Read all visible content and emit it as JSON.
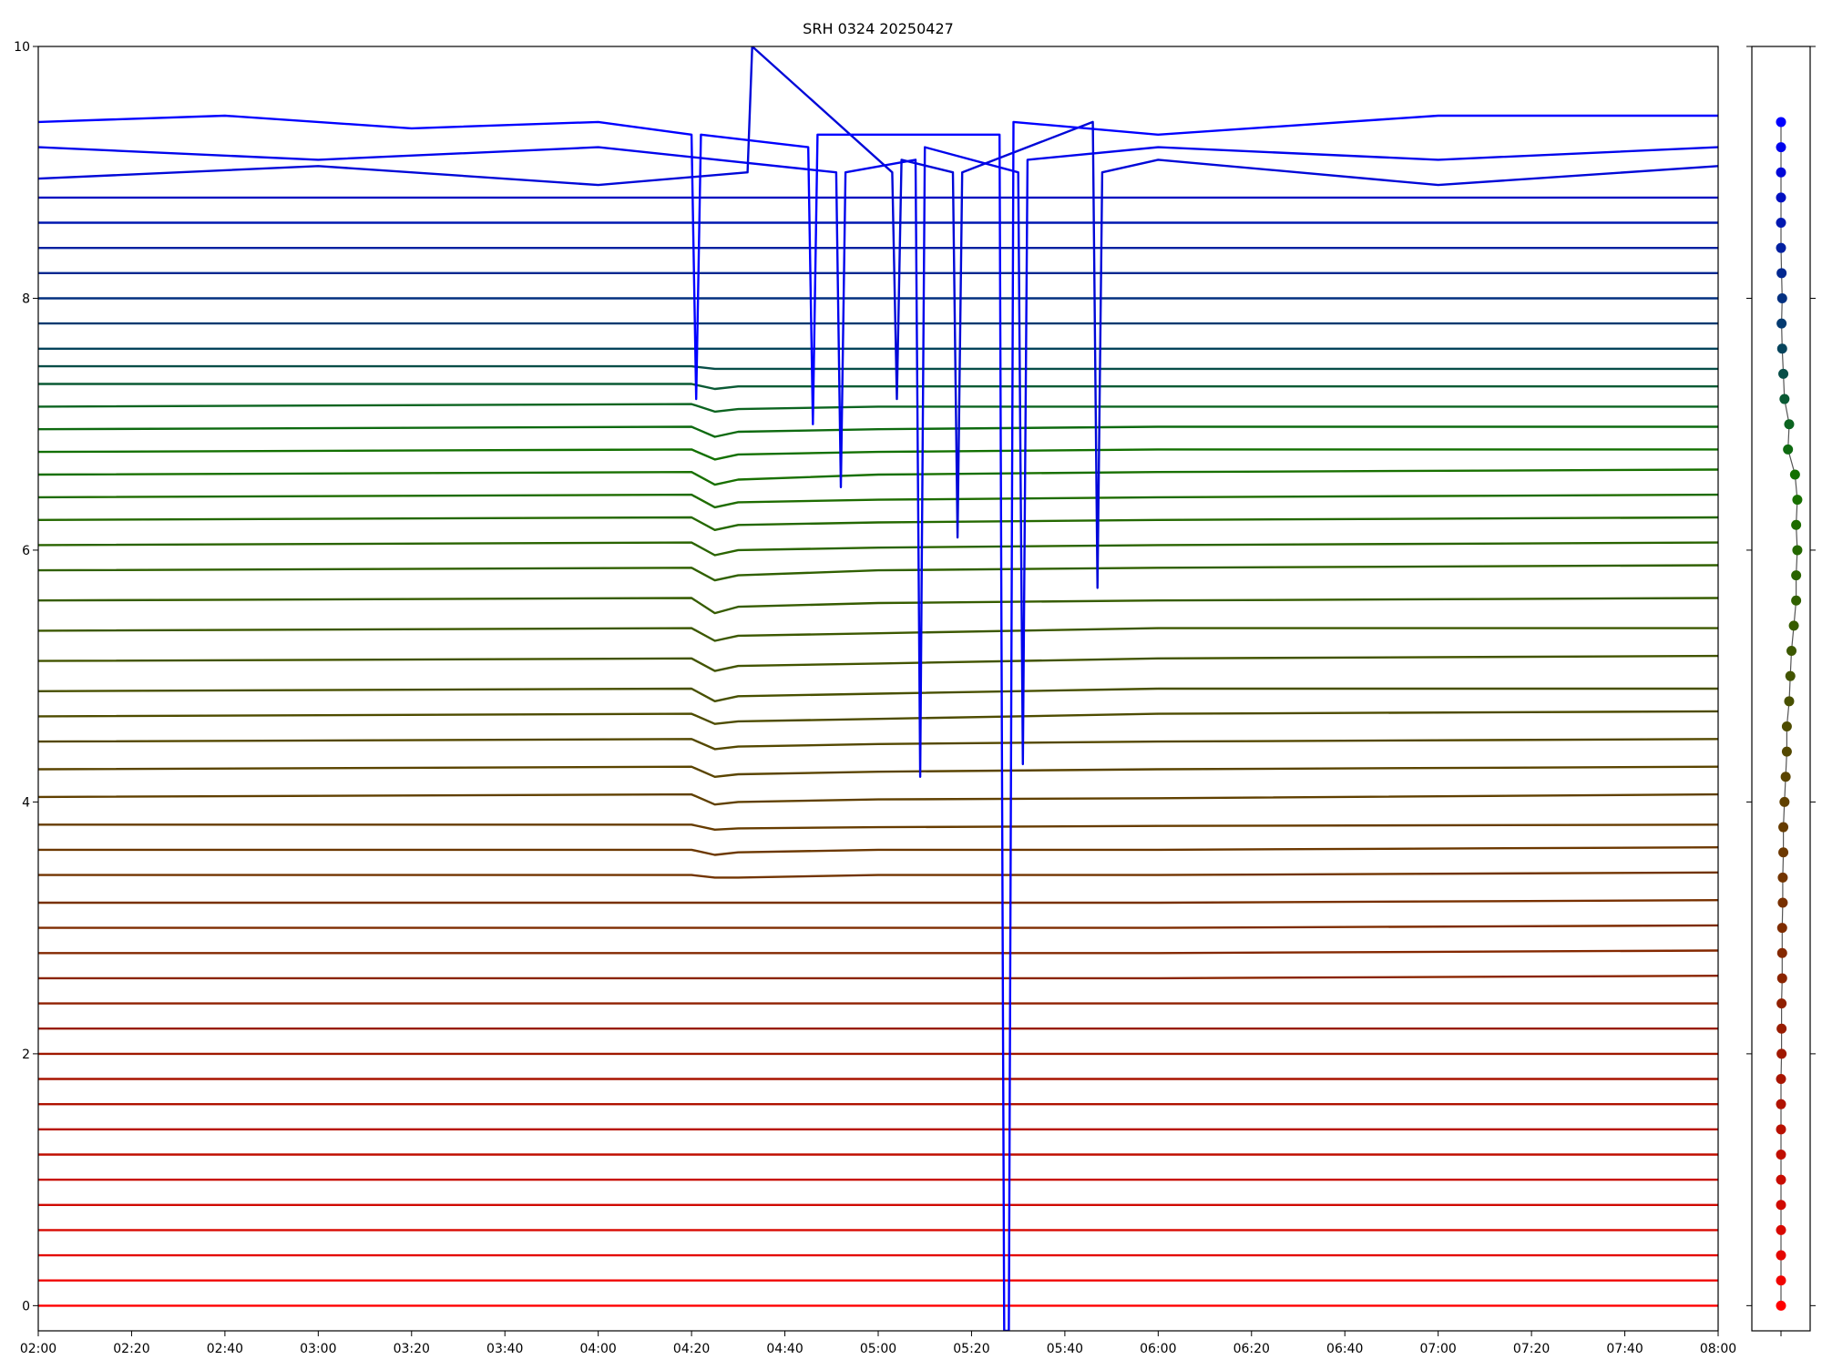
{
  "chart_data": [
    {
      "type": "multitrace",
      "title": "SRH 0324 20250427",
      "xlim": [
        "02:00",
        "08:00"
      ],
      "xticks": [
        "02:00",
        "02:20",
        "02:40",
        "03:00",
        "03:20",
        "03:40",
        "04:00",
        "04:20",
        "04:40",
        "05:00",
        "05:20",
        "05:40",
        "06:00",
        "06:20",
        "06:40",
        "07:00",
        "07:20",
        "07:40",
        "08:00"
      ],
      "ylim": [
        -0.2,
        10
      ],
      "yticks": [
        0,
        2,
        4,
        6,
        8,
        10
      ],
      "grid": false,
      "x": [
        "02:00",
        "04:20",
        "04:25",
        "04:30",
        "05:00",
        "06:00",
        "08:00"
      ],
      "series": [
        {
          "color": "#ff0000",
          "values": [
            0,
            0,
            0,
            0,
            0,
            0,
            0
          ]
        },
        {
          "color": "#f00400",
          "values": [
            0.2,
            0.2,
            0.2,
            0.2,
            0.2,
            0.2,
            0.2
          ]
        },
        {
          "color": "#e40600",
          "values": [
            0.4,
            0.4,
            0.4,
            0.4,
            0.4,
            0.4,
            0.4
          ]
        },
        {
          "color": "#d80800",
          "values": [
            0.6,
            0.6,
            0.6,
            0.6,
            0.6,
            0.6,
            0.6
          ]
        },
        {
          "color": "#d00a00",
          "values": [
            0.8,
            0.8,
            0.8,
            0.8,
            0.8,
            0.8,
            0.8
          ]
        },
        {
          "color": "#c80c00",
          "values": [
            1.0,
            1.0,
            1.0,
            1.0,
            1.0,
            1.0,
            1.0
          ]
        },
        {
          "color": "#c00e00",
          "values": [
            1.2,
            1.2,
            1.2,
            1.2,
            1.2,
            1.2,
            1.2
          ]
        },
        {
          "color": "#b81000",
          "values": [
            1.4,
            1.4,
            1.4,
            1.4,
            1.4,
            1.4,
            1.4
          ]
        },
        {
          "color": "#b01200",
          "values": [
            1.6,
            1.6,
            1.6,
            1.6,
            1.6,
            1.6,
            1.6
          ]
        },
        {
          "color": "#a81400",
          "values": [
            1.8,
            1.8,
            1.8,
            1.8,
            1.8,
            1.8,
            1.8
          ]
        },
        {
          "color": "#a01800",
          "values": [
            2.0,
            2.0,
            2.0,
            2.0,
            2.0,
            2.0,
            2.0
          ]
        },
        {
          "color": "#981c00",
          "values": [
            2.2,
            2.2,
            2.2,
            2.2,
            2.2,
            2.2,
            2.2
          ]
        },
        {
          "color": "#902000",
          "values": [
            2.4,
            2.4,
            2.4,
            2.4,
            2.4,
            2.4,
            2.4
          ]
        },
        {
          "color": "#8a2400",
          "values": [
            2.6,
            2.6,
            2.6,
            2.6,
            2.6,
            2.6,
            2.62
          ]
        },
        {
          "color": "#842800",
          "values": [
            2.8,
            2.8,
            2.8,
            2.8,
            2.8,
            2.8,
            2.82
          ]
        },
        {
          "color": "#7e2c00",
          "values": [
            3.0,
            3.0,
            3.0,
            3.0,
            3.0,
            3.0,
            3.02
          ]
        },
        {
          "color": "#783000",
          "values": [
            3.2,
            3.2,
            3.2,
            3.2,
            3.2,
            3.2,
            3.22
          ]
        },
        {
          "color": "#723400",
          "values": [
            3.42,
            3.42,
            3.4,
            3.4,
            3.42,
            3.42,
            3.44
          ]
        },
        {
          "color": "#6c3800",
          "values": [
            3.62,
            3.62,
            3.58,
            3.6,
            3.62,
            3.62,
            3.64
          ]
        },
        {
          "color": "#663c00",
          "values": [
            3.82,
            3.82,
            3.78,
            3.79,
            3.8,
            3.81,
            3.82
          ]
        },
        {
          "color": "#604000",
          "values": [
            4.04,
            4.06,
            3.98,
            4.0,
            4.02,
            4.03,
            4.06
          ]
        },
        {
          "color": "#5a4400",
          "values": [
            4.26,
            4.28,
            4.2,
            4.22,
            4.24,
            4.26,
            4.28
          ]
        },
        {
          "color": "#544800",
          "values": [
            4.48,
            4.5,
            4.42,
            4.44,
            4.46,
            4.48,
            4.5
          ]
        },
        {
          "color": "#4e4c00",
          "values": [
            4.68,
            4.7,
            4.62,
            4.64,
            4.66,
            4.7,
            4.72
          ]
        },
        {
          "color": "#485000",
          "values": [
            4.88,
            4.9,
            4.8,
            4.84,
            4.86,
            4.9,
            4.9
          ]
        },
        {
          "color": "#425400",
          "values": [
            5.12,
            5.14,
            5.04,
            5.08,
            5.1,
            5.14,
            5.16
          ]
        },
        {
          "color": "#3c5800",
          "values": [
            5.36,
            5.38,
            5.28,
            5.32,
            5.34,
            5.38,
            5.38
          ]
        },
        {
          "color": "#365c00",
          "values": [
            5.6,
            5.62,
            5.5,
            5.55,
            5.58,
            5.6,
            5.62
          ]
        },
        {
          "color": "#306000",
          "values": [
            5.84,
            5.86,
            5.76,
            5.8,
            5.84,
            5.86,
            5.88
          ]
        },
        {
          "color": "#2a6400",
          "values": [
            6.04,
            6.06,
            5.96,
            6.0,
            6.02,
            6.04,
            6.06
          ]
        },
        {
          "color": "#246800",
          "values": [
            6.24,
            6.26,
            6.16,
            6.2,
            6.22,
            6.24,
            6.26
          ]
        },
        {
          "color": "#1e6c00",
          "values": [
            6.42,
            6.44,
            6.34,
            6.38,
            6.4,
            6.42,
            6.44
          ]
        },
        {
          "color": "#187000",
          "values": [
            6.6,
            6.62,
            6.52,
            6.56,
            6.6,
            6.62,
            6.64
          ]
        },
        {
          "color": "#127000",
          "values": [
            6.78,
            6.8,
            6.72,
            6.76,
            6.78,
            6.8,
            6.8
          ]
        },
        {
          "color": "#0e6a10",
          "values": [
            6.96,
            6.98,
            6.9,
            6.94,
            6.96,
            6.98,
            6.98
          ]
        },
        {
          "color": "#0c6420",
          "values": [
            7.14,
            7.16,
            7.1,
            7.12,
            7.14,
            7.14,
            7.14
          ]
        },
        {
          "color": "#0a5a34",
          "values": [
            7.32,
            7.32,
            7.28,
            7.3,
            7.3,
            7.3,
            7.3
          ]
        },
        {
          "color": "#084e48",
          "values": [
            7.46,
            7.46,
            7.44,
            7.44,
            7.44,
            7.44,
            7.44
          ]
        },
        {
          "color": "#06445c",
          "values": [
            7.6,
            7.6,
            7.6,
            7.6,
            7.6,
            7.6,
            7.6
          ]
        },
        {
          "color": "#043a70",
          "values": [
            7.8,
            7.8,
            7.8,
            7.8,
            7.8,
            7.8,
            7.8
          ]
        },
        {
          "color": "#033080",
          "values": [
            8.0,
            8.0,
            8.0,
            8.0,
            8.0,
            8.0,
            8.0
          ]
        },
        {
          "color": "#022890",
          "values": [
            8.2,
            8.2,
            8.2,
            8.2,
            8.2,
            8.2,
            8.2
          ]
        },
        {
          "color": "#0220a0",
          "values": [
            8.4,
            8.4,
            8.4,
            8.4,
            8.4,
            8.4,
            8.4
          ]
        },
        {
          "color": "#0118b0",
          "values": [
            8.6,
            8.6,
            8.6,
            8.6,
            8.6,
            8.6,
            8.6
          ]
        },
        {
          "color": "#0110c0",
          "values": [
            8.8,
            8.8,
            8.8,
            8.8,
            8.8,
            8.8,
            8.8
          ]
        },
        {
          "color": "#0008d8",
          "x": [
            "02:00",
            "03:00",
            "04:00",
            "04:32",
            "04:33",
            "05:03",
            "05:04",
            "05:05",
            "05:16",
            "05:17",
            "05:18",
            "05:46",
            "05:47",
            "05:48",
            "06:00",
            "07:00",
            "08:00"
          ],
          "values": [
            8.95,
            9.05,
            8.9,
            9.0,
            10,
            9.0,
            7.2,
            9.1,
            9.0,
            6.1,
            9.0,
            9.4,
            5.7,
            9.0,
            9.1,
            8.9,
            9.05
          ]
        },
        {
          "color": "#0004ec",
          "x": [
            "02:00",
            "03:00",
            "04:00",
            "04:51",
            "04:52",
            "04:53",
            "05:08",
            "05:09",
            "05:10",
            "05:30",
            "05:31",
            "05:32",
            "06:00",
            "07:00",
            "08:00"
          ],
          "values": [
            9.2,
            9.1,
            9.2,
            9.0,
            6.5,
            9.0,
            9.1,
            4.2,
            9.2,
            9.0,
            4.3,
            9.1,
            9.2,
            9.1,
            9.2
          ]
        },
        {
          "color": "#0000ff",
          "x": [
            "02:00",
            "02:40",
            "03:20",
            "04:00",
            "04:20",
            "04:21",
            "04:22",
            "04:45",
            "04:46",
            "04:47",
            "05:26",
            "05:27",
            "05:28",
            "05:29",
            "06:00",
            "07:00",
            "08:00"
          ],
          "values": [
            9.4,
            9.45,
            9.35,
            9.4,
            9.3,
            7.2,
            9.3,
            9.2,
            7.0,
            9.3,
            9.3,
            -0.2,
            -0.2,
            9.4,
            9.3,
            9.45,
            9.45
          ]
        }
      ]
    },
    {
      "type": "scatter",
      "xlim": [
        -1,
        1
      ],
      "xticks": [
        0
      ],
      "ylim": [
        -0.2,
        10
      ],
      "yticks": [
        0,
        2,
        4,
        6,
        8,
        10
      ],
      "line_color": "#555555",
      "x": [
        0,
        0,
        0,
        0,
        0,
        0,
        0,
        0,
        0,
        0,
        0.02,
        0.02,
        0.02,
        0.04,
        0.04,
        0.04,
        0.06,
        0.06,
        0.08,
        0.08,
        0.12,
        0.16,
        0.2,
        0.2,
        0.28,
        0.32,
        0.36,
        0.44,
        0.52,
        0.52,
        0.56,
        0.52,
        0.56,
        0.48,
        0.24,
        0.28,
        0.12,
        0.08,
        0.04,
        0.02,
        0.04,
        0.02,
        0,
        0,
        0,
        0,
        0,
        0
      ],
      "y": [
        0,
        0.2,
        0.4,
        0.6,
        0.8,
        1.0,
        1.2,
        1.4,
        1.6,
        1.8,
        2.0,
        2.2,
        2.4,
        2.6,
        2.8,
        3.0,
        3.2,
        3.4,
        3.6,
        3.8,
        4.0,
        4.2,
        4.4,
        4.6,
        4.8,
        5.0,
        5.2,
        5.4,
        5.6,
        5.8,
        6.0,
        6.2,
        6.4,
        6.6,
        6.8,
        7.0,
        7.2,
        7.4,
        7.6,
        7.8,
        8.0,
        8.2,
        8.4,
        8.6,
        8.8,
        9.0,
        9.2,
        9.4
      ],
      "colors": [
        "#ff0000",
        "#f00400",
        "#e40600",
        "#d80800",
        "#d00a00",
        "#c80c00",
        "#c00e00",
        "#b81000",
        "#b01200",
        "#a81400",
        "#a01800",
        "#981c00",
        "#902000",
        "#8a2400",
        "#842800",
        "#7e2c00",
        "#783000",
        "#723400",
        "#6c3800",
        "#663c00",
        "#604000",
        "#5a4400",
        "#544800",
        "#4e4c00",
        "#485000",
        "#425400",
        "#3c5800",
        "#365c00",
        "#306000",
        "#2a6400",
        "#246800",
        "#1e6c00",
        "#187000",
        "#127000",
        "#0e6a10",
        "#0c6420",
        "#0a5a34",
        "#084e48",
        "#06445c",
        "#043a70",
        "#033080",
        "#022890",
        "#0220a0",
        "#0118b0",
        "#0110c0",
        "#0008d8",
        "#0004ec",
        "#0000ff"
      ]
    }
  ]
}
